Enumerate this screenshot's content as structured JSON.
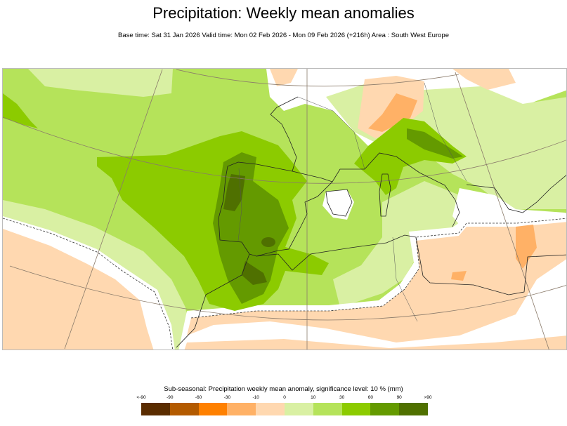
{
  "title": "Precipitation: Weekly mean anomalies",
  "subtitle": "Base time: Sat 31 Jan 2026 Valid time: Mon 02 Feb 2026 - Mon 09 Feb 2026 (+216h) Area : South West Europe",
  "map": {
    "area": "South West Europe",
    "variable": "Precipitation weekly mean anomaly",
    "contour": "dashed line = significance level"
  },
  "legend": {
    "title": "Sub-seasonal: Precipitation weekly mean anomaly, significance level: 10 % (mm)",
    "labels": [
      "<-90",
      "-90",
      "-60",
      "-30",
      "-10",
      "0",
      "10",
      "30",
      "60",
      "90",
      ">90"
    ],
    "colors": [
      "#5a2c00",
      "#b35a00",
      "#ff8000",
      "#ffb166",
      "#ffd8b0",
      "#d9f0a3",
      "#b5e35a",
      "#8ccb00",
      "#649a00",
      "#4f7000"
    ]
  }
}
